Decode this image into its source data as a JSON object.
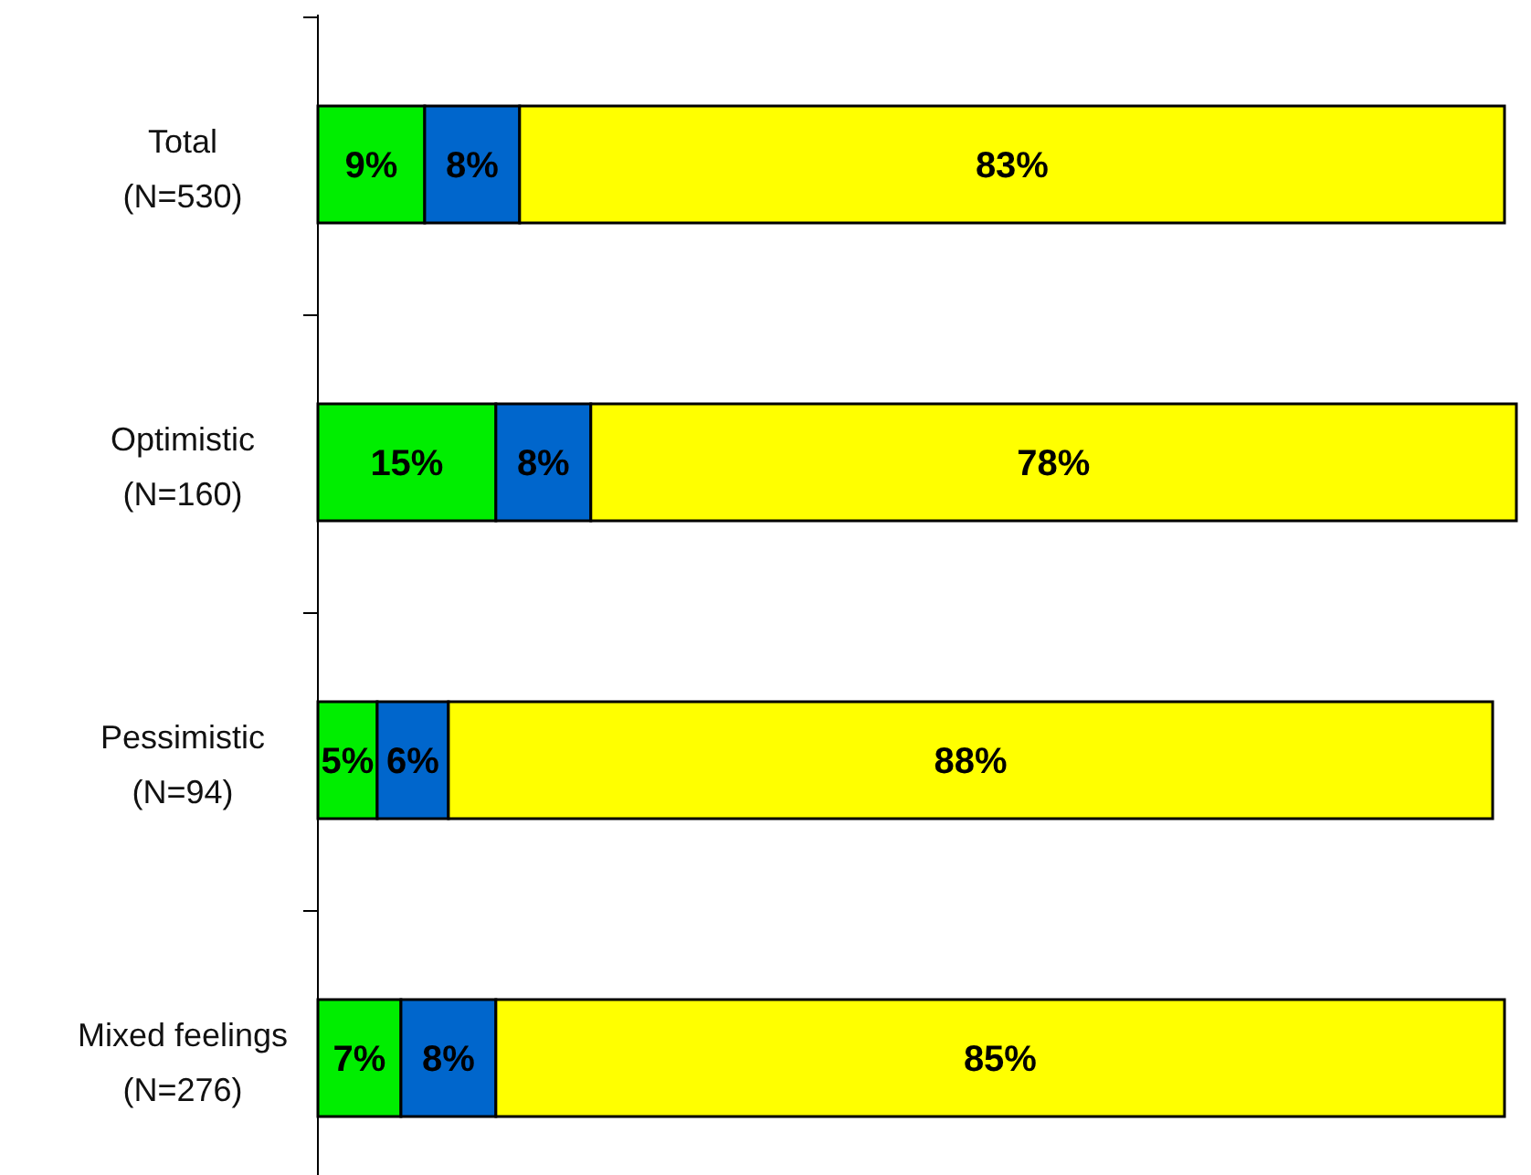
{
  "chart_data": {
    "type": "bar",
    "orientation": "horizontal",
    "stacked": true,
    "categories": [
      "Total\n(N=530)",
      "Optimistic\n(N=160)",
      "Pessimistic\n(N=94)",
      "Mixed feelings\n(N=276)"
    ],
    "series": [
      {
        "color": "#00ee00",
        "values": [
          9,
          15,
          5,
          7
        ],
        "value_labels": [
          "9%",
          "15%",
          "5%",
          "7%"
        ]
      },
      {
        "color": "#0066cc",
        "values": [
          8,
          8,
          6,
          8
        ],
        "value_labels": [
          "8%",
          "8%",
          "6%",
          "8%"
        ]
      },
      {
        "color": "#ffff00",
        "values": [
          83,
          78,
          88,
          85
        ],
        "value_labels": [
          "83%",
          "78%",
          "88%",
          "85%"
        ]
      }
    ],
    "tick_labels": "y"
  }
}
